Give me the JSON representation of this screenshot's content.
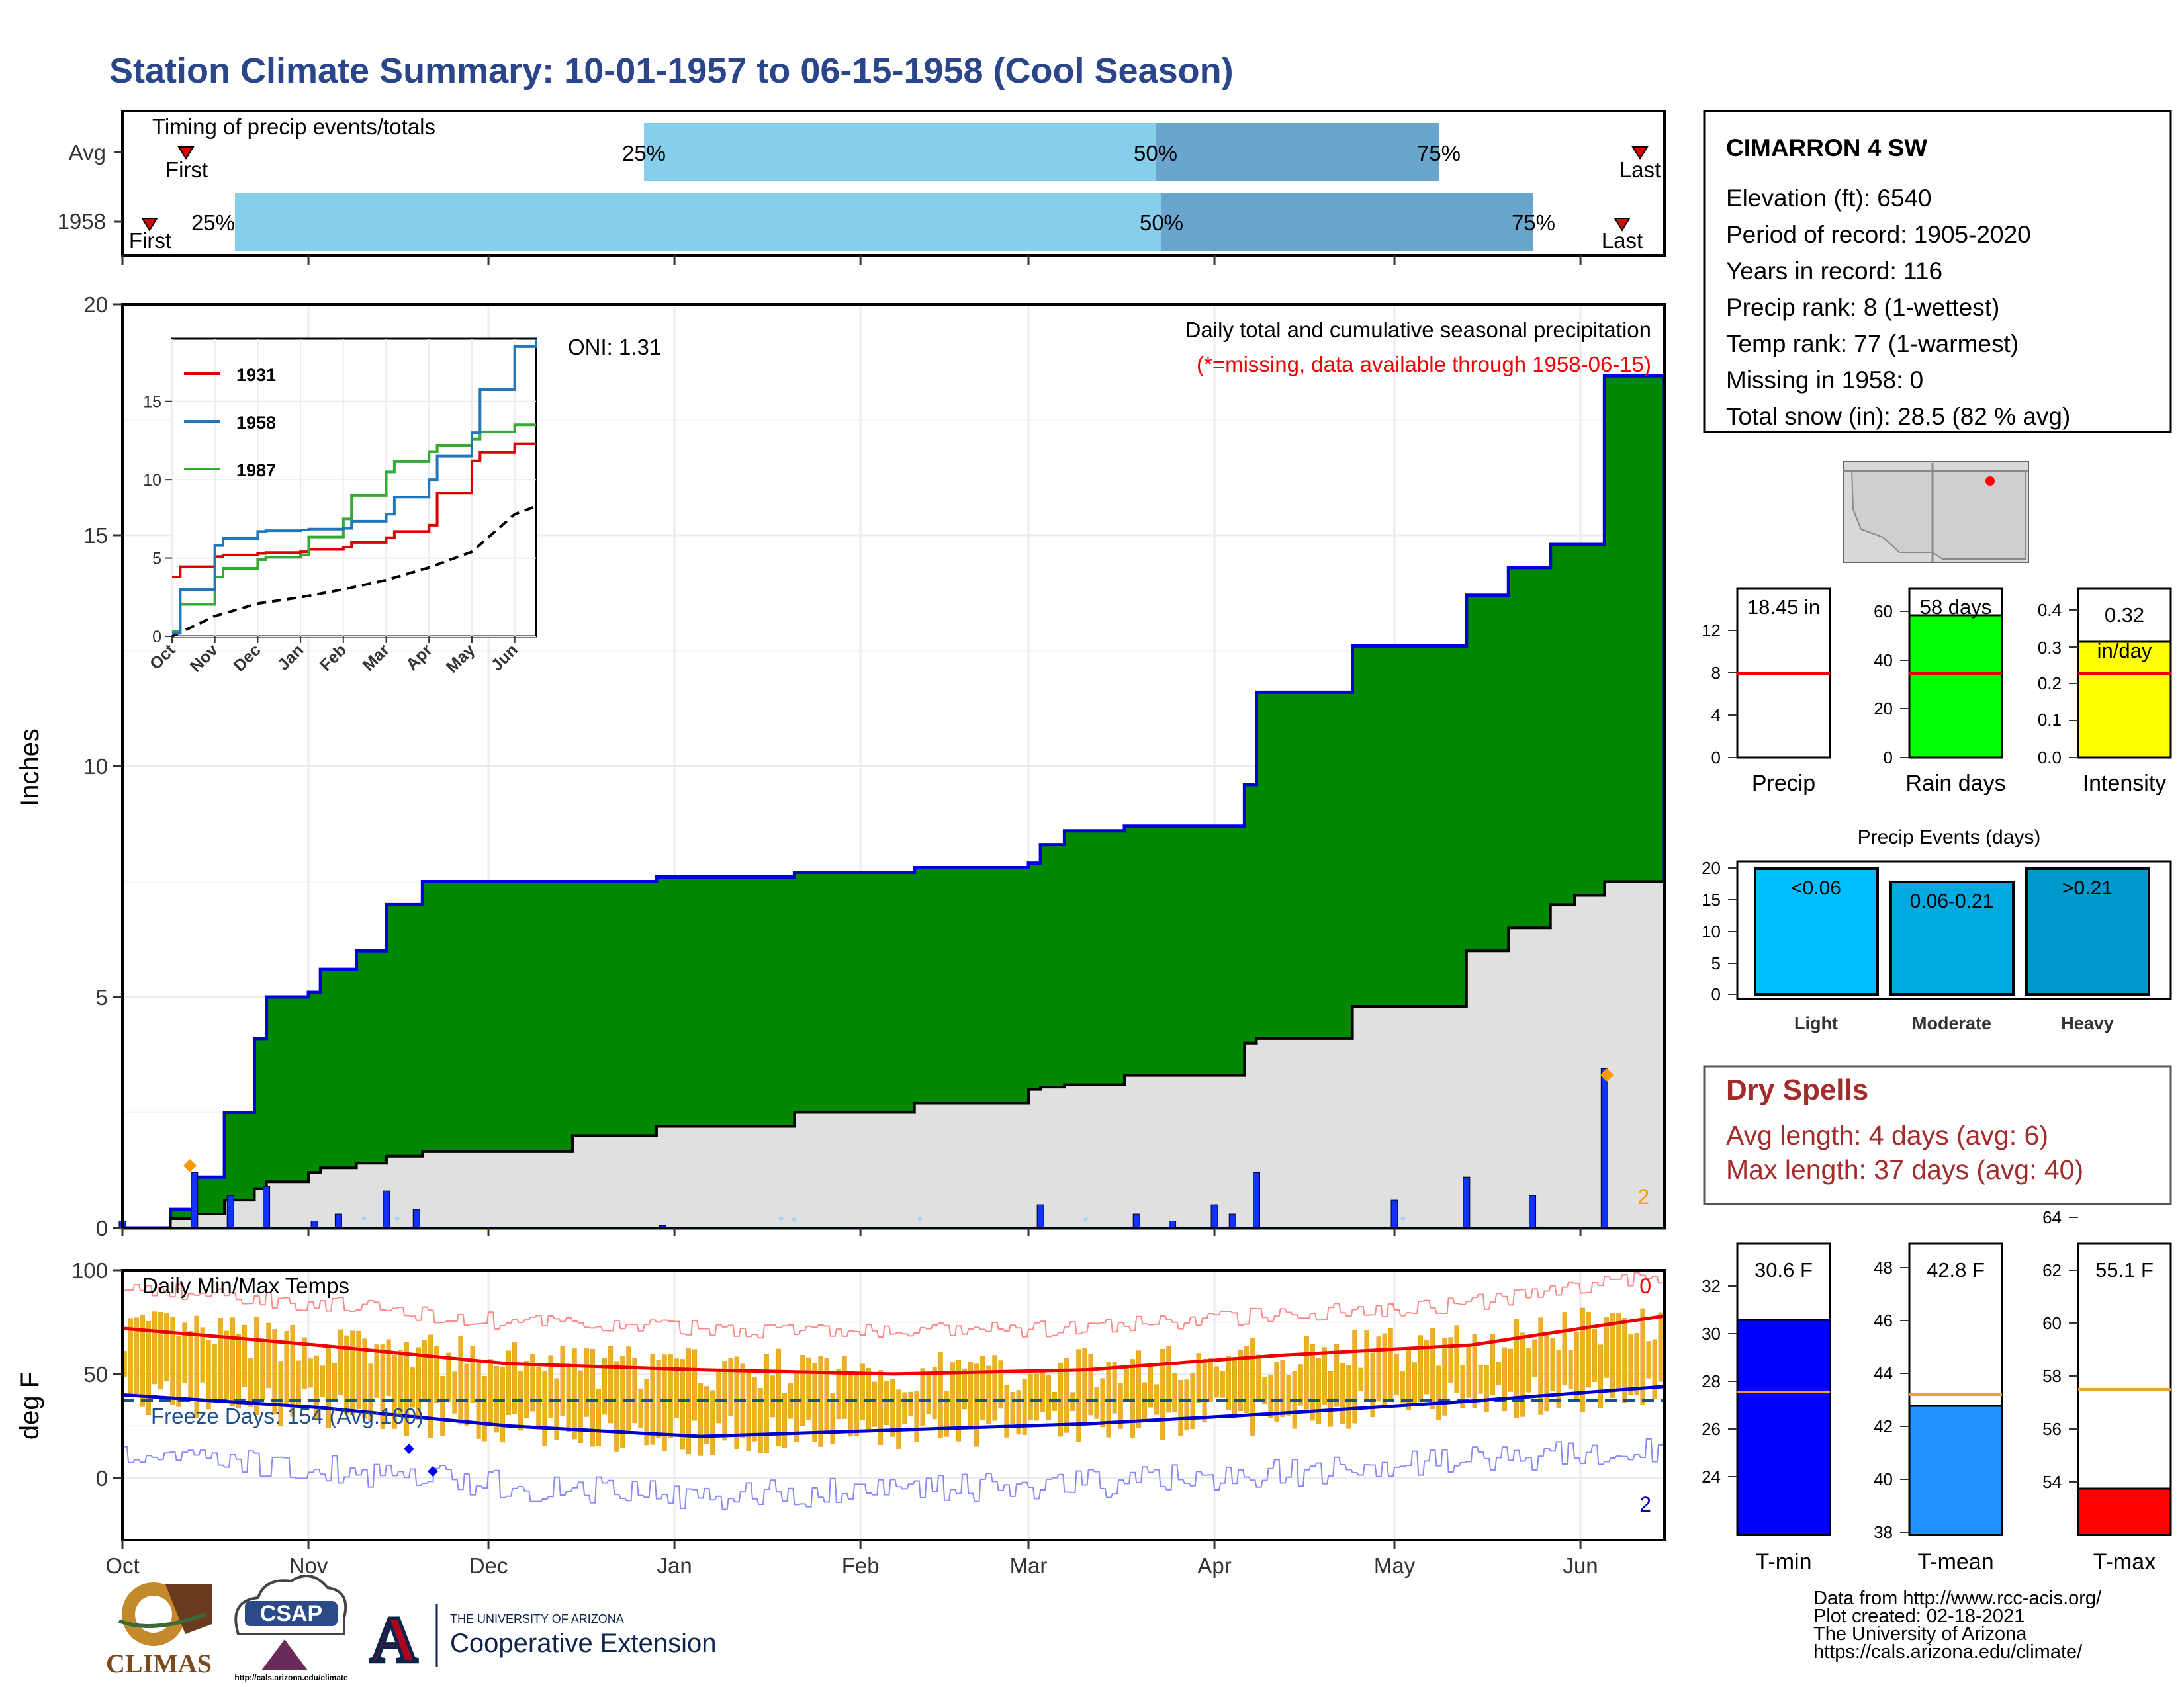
{
  "header": {
    "title": "Station Climate Summary: 10-01-1957 to 06-15-1958 (Cool Season)"
  },
  "timing_panel": {
    "title": "Timing of precip events/totals",
    "rows": [
      {
        "label": "Avg",
        "first": "First",
        "last": "Last",
        "p25": "25%",
        "p50": "50%",
        "p75": "75%"
      },
      {
        "label": "1958",
        "first": "First",
        "last": "Last",
        "p25": "25%",
        "p50": "50%",
        "p75": "75%"
      }
    ]
  },
  "station": {
    "name": "CIMARRON 4 SW",
    "lines": [
      "Elevation (ft): 6540",
      "Period of record: 1905-2020",
      "Years in record: 116",
      "Precip rank: 8 (1-wettest)",
      "Temp rank: 77 (1-warmest)",
      "Missing in 1958: 0",
      "Total snow (in): 28.5 (82 % avg)"
    ]
  },
  "precip_panel": {
    "oni": "ONI: 1.31",
    "title": "Daily total and cumulative seasonal precipitation",
    "subtitle": "(*=missing, data available through 1958-06-15)",
    "ylabel": "Inches",
    "corner_count": "2"
  },
  "inset": {
    "legend": [
      "1931",
      "1958",
      "1987"
    ]
  },
  "temp_panel": {
    "title": "Daily Min/Max Temps",
    "freeze": "Freeze Days: 154 (Avg:160)",
    "ylabel": "deg F",
    "count_top": "0",
    "count_bottom": "2"
  },
  "months": [
    "Oct",
    "Nov",
    "Dec",
    "Jan",
    "Feb",
    "Mar",
    "Apr",
    "May",
    "Jun"
  ],
  "bars_top": [
    {
      "label": "Precip",
      "value_label": "18.45 in"
    },
    {
      "label": "Rain days",
      "value_label": "58 days"
    },
    {
      "label": "Intensity",
      "value_label": "0.32",
      "value_label2": "in/day"
    }
  ],
  "events": {
    "title": "Precip Events (days)",
    "bars": [
      {
        "label": "Light",
        "inner": "<0.06"
      },
      {
        "label": "Moderate",
        "inner": "0.06-0.21"
      },
      {
        "label": "Heavy",
        "inner": ">0.21"
      }
    ]
  },
  "dry_spells": {
    "title": "Dry Spells",
    "avg": "Avg length: 4 days (avg: 6)",
    "max": "Max length: 37 days (avg: 40)"
  },
  "temp_bars": [
    {
      "label": "T-min",
      "value_label": "30.6 F"
    },
    {
      "label": "T-mean",
      "value_label": "42.8 F"
    },
    {
      "label": "T-max",
      "value_label": "55.1 F"
    }
  ],
  "footer": {
    "lines": [
      "Data from http://www.rcc-acis.org/",
      "Plot created: 02-18-2021",
      "The University of Arizona",
      "https://cals.arizona.edu/climate/"
    ],
    "climas": "CLIMAS",
    "csap": "CSAP",
    "csap_url": "http://cals.arizona.edu/climate",
    "ua_small": "THE UNIVERSITY OF ARIZONA",
    "ua_big": "Cooperative Extension",
    "ua_letter": "A"
  },
  "colors": {
    "title": "#2a4589",
    "cum_fill": "#008800",
    "cum_line": "#0000dd",
    "avg_fill": "#e0e0e0",
    "daily_bar": "#1133ff",
    "snow": "#87cefa",
    "temp_bar": "#f0b020",
    "tmax_avg": "#ee0000",
    "tmin_avg": "#0000cc",
    "dry_spells": "#a52a2a"
  },
  "chart_data": [
    {
      "type": "area",
      "x": [
        "1957-10-01",
        "1957-10-09",
        "1957-10-13",
        "1957-10-18",
        "1957-10-23",
        "1957-10-25",
        "1957-11-01",
        "1957-11-03",
        "1957-11-09",
        "1957-11-14",
        "1957-11-20",
        "1957-12-15",
        "1957-12-29",
        "1958-01-21",
        "1958-02-10",
        "1958-03-01",
        "1958-03-03",
        "1958-03-07",
        "1958-03-17",
        "1958-04-06",
        "1958-04-08",
        "1958-04-24",
        "1958-05-13",
        "1958-05-20",
        "1958-05-27",
        "1958-05-31",
        "1958-06-05",
        "1958-06-15"
      ],
      "series": [
        {
          "values": [
            0.0,
            0.4,
            1.1,
            2.5,
            4.1,
            5.0,
            5.1,
            5.6,
            6.0,
            7.0,
            7.5,
            7.5,
            7.6,
            7.7,
            7.8,
            7.9,
            8.3,
            8.6,
            8.7,
            9.6,
            11.6,
            12.6,
            13.7,
            14.3,
            14.8,
            14.8,
            18.45,
            18.45
          ]
        },
        {
          "values": [
            0.0,
            0.2,
            0.3,
            0.6,
            0.85,
            1.0,
            1.2,
            1.3,
            1.4,
            1.55,
            1.65,
            2.0,
            2.2,
            2.5,
            2.7,
            3.0,
            3.05,
            3.1,
            3.3,
            4.0,
            4.1,
            4.8,
            6.0,
            6.5,
            7.0,
            7.2,
            7.5,
            7.8
          ]
        }
      ],
      "ylabel": "Inches",
      "ylim": [
        0,
        20
      ]
    },
    {
      "type": "bar",
      "x": [
        "1957-10-01",
        "1957-10-13",
        "1957-10-19",
        "1957-10-25",
        "1957-11-02",
        "1957-11-06",
        "1957-11-14",
        "1957-11-19",
        "1957-12-30",
        "1958-03-03",
        "1958-03-19",
        "1958-03-25",
        "1958-04-01",
        "1958-04-04",
        "1958-04-08",
        "1958-05-01",
        "1958-05-13",
        "1958-05-24",
        "1958-06-05"
      ],
      "values": [
        0.15,
        1.2,
        0.7,
        0.9,
        0.15,
        0.3,
        0.8,
        0.4,
        0.05,
        0.5,
        0.3,
        0.15,
        0.5,
        0.3,
        1.2,
        0.6,
        1.1,
        0.7,
        3.45
      ],
      "ylim": [
        0,
        20
      ]
    },
    {
      "type": "line",
      "x": [
        "Oct",
        "Nov",
        "Dec",
        "Jan",
        "Feb",
        "Mar",
        "Apr",
        "May",
        "Jun"
      ],
      "series": [
        {
          "name": "1931",
          "values": [
            3.8,
            5.1,
            5.3,
            5.4,
            5.7,
            6.3,
            7.1,
            11.2,
            12.3
          ]
        },
        {
          "name": "1958",
          "values": [
            0.2,
            5.8,
            6.7,
            6.8,
            6.9,
            7.8,
            10.0,
            13.0,
            18.5
          ]
        },
        {
          "name": "1987",
          "values": [
            0.3,
            3.8,
            4.9,
            5.2,
            7.5,
            10.5,
            11.8,
            12.6,
            13.5
          ]
        },
        {
          "values": [
            0.0,
            1.3,
            2.1,
            2.5,
            3.0,
            3.6,
            4.4,
            5.4,
            7.8
          ]
        }
      ],
      "ylim": [
        0,
        19
      ]
    },
    {
      "type": "line",
      "x": [
        "Oct",
        "Nov",
        "Dec",
        "Jan",
        "Feb",
        "Mar",
        "Apr",
        "May",
        "Jun"
      ],
      "series": [
        {
          "values": [
            72,
            64,
            55,
            52,
            50,
            52,
            59,
            64,
            78
          ]
        },
        {
          "values": [
            40,
            34,
            25,
            20,
            23,
            26,
            31,
            37,
            44
          ]
        }
      ],
      "ylabel": "deg F",
      "ylim": [
        -30,
        100
      ],
      "annotations": [
        "Daily Min/Max Temps",
        "Freeze Days: 154 (Avg:160)"
      ]
    },
    {
      "type": "bar",
      "categories": [
        "Precip",
        "Rain days",
        "Intensity"
      ],
      "values": [
        18.45,
        58,
        0.32
      ],
      "averages": [
        8,
        34,
        0.23
      ]
    },
    {
      "type": "bar",
      "title": "Precip Events (days)",
      "categories": [
        "Light",
        "Moderate",
        "Heavy"
      ],
      "values": [
        20,
        18,
        20
      ],
      "ylim": [
        0,
        20
      ]
    },
    {
      "type": "bar",
      "categories": [
        "T-min",
        "T-mean",
        "T-max"
      ],
      "values": [
        30.6,
        42.8,
        55.1
      ],
      "averages": [
        27.9,
        43.4,
        58.8
      ]
    }
  ]
}
